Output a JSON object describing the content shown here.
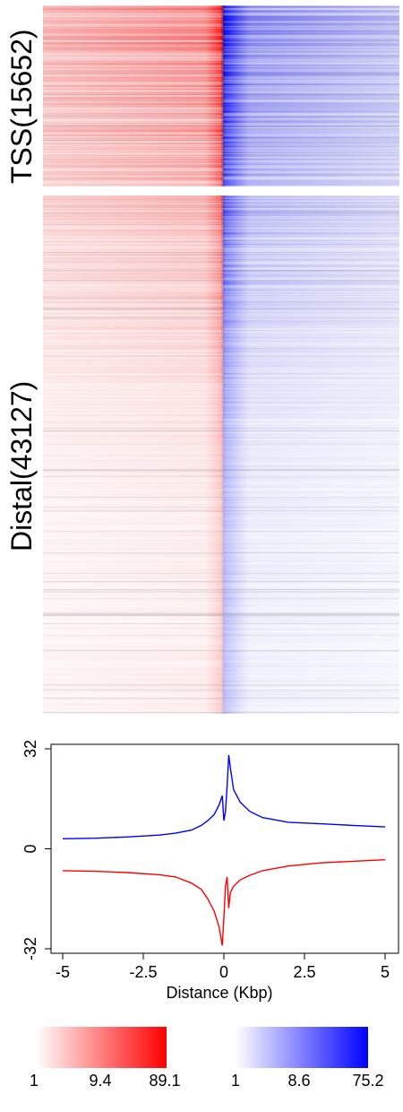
{
  "heatmap_panels": [
    {
      "label": "TSS(15652)"
    },
    {
      "label": "Distal(43127)"
    }
  ],
  "colors": {
    "red": "#ff0000",
    "blue": "#0000ff",
    "axis": "#000000"
  },
  "chart_data": [
    {
      "type": "heatmap",
      "panels": [
        "TSS(15652)",
        "Distal(43127)"
      ],
      "description_of_signal": "rows sorted; red density left of center, blue density right of center"
    },
    {
      "type": "line",
      "xlabel": "Distance (Kbp)",
      "x_ticks": [
        "-5",
        "-2.5",
        "0",
        "2.5",
        "5"
      ],
      "y_ticks": [
        "-32",
        "0",
        "32"
      ],
      "xlim": [
        -5,
        5
      ],
      "ylim": [
        -32,
        32
      ],
      "series": [
        {
          "color": "#0000ff",
          "points": [
            [
              -5,
              3.2
            ],
            [
              -4,
              3.4
            ],
            [
              -3,
              3.8
            ],
            [
              -2,
              4.4
            ],
            [
              -1.5,
              5
            ],
            [
              -1,
              6
            ],
            [
              -0.7,
              7.5
            ],
            [
              -0.5,
              9
            ],
            [
              -0.3,
              11
            ],
            [
              -0.15,
              14
            ],
            [
              -0.05,
              17
            ],
            [
              0,
              9
            ],
            [
              0.05,
              12
            ],
            [
              0.1,
              20
            ],
            [
              0.15,
              30
            ],
            [
              0.2,
              26
            ],
            [
              0.3,
              19
            ],
            [
              0.5,
              15
            ],
            [
              0.8,
              12
            ],
            [
              1.2,
              10
            ],
            [
              2,
              8.5
            ],
            [
              3,
              8
            ],
            [
              4,
              7.5
            ],
            [
              5,
              7
            ]
          ]
        },
        {
          "color": "#ff0000",
          "points": [
            [
              -5,
              -7
            ],
            [
              -4,
              -7.2
            ],
            [
              -3,
              -7.6
            ],
            [
              -2,
              -8.3
            ],
            [
              -1.5,
              -9
            ],
            [
              -1,
              -11
            ],
            [
              -0.7,
              -13
            ],
            [
              -0.5,
              -16
            ],
            [
              -0.3,
              -20
            ],
            [
              -0.15,
              -25
            ],
            [
              -0.05,
              -31
            ],
            [
              0,
              -22
            ],
            [
              0.05,
              -12
            ],
            [
              0.1,
              -9
            ],
            [
              0.15,
              -19
            ],
            [
              0.2,
              -14
            ],
            [
              0.3,
              -12
            ],
            [
              0.5,
              -10
            ],
            [
              0.8,
              -8.5
            ],
            [
              1.2,
              -7
            ],
            [
              2,
              -5.5
            ],
            [
              3,
              -4.5
            ],
            [
              4,
              -4
            ],
            [
              5,
              -3.5
            ]
          ]
        }
      ]
    }
  ],
  "color_scales": [
    {
      "color": "#ff0000",
      "ticks": [
        "1",
        "9.4",
        "89.1"
      ]
    },
    {
      "color": "#0000ff",
      "ticks": [
        "1",
        "8.6",
        "75.2"
      ]
    }
  ]
}
